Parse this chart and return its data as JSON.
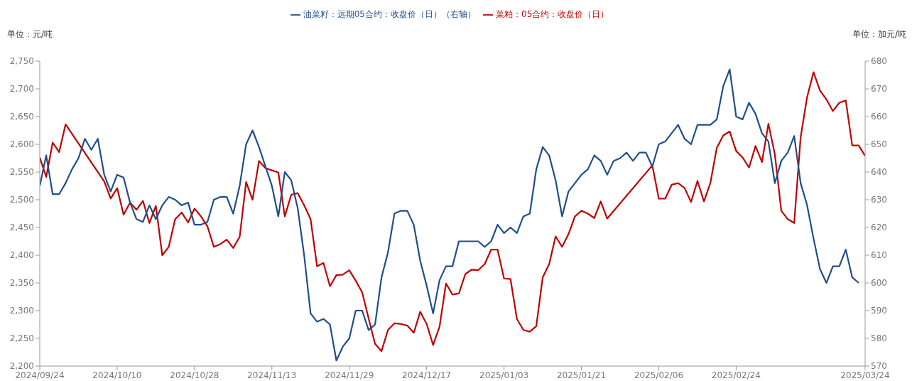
{
  "chart_data": {
    "type": "line",
    "ylabel": "单位：元/吨",
    "y2label": "单位：加元/吨",
    "categories": [
      "2024/09/24",
      null,
      null,
      null,
      null,
      null,
      null,
      null,
      null,
      null,
      null,
      null,
      "2024/10/10",
      null,
      null,
      null,
      null,
      null,
      null,
      null,
      null,
      null,
      null,
      null,
      "2024/10/28",
      null,
      null,
      null,
      null,
      null,
      null,
      null,
      null,
      null,
      null,
      null,
      "2024/11/13",
      null,
      null,
      null,
      null,
      null,
      null,
      null,
      null,
      null,
      null,
      null,
      "2024/11/29",
      null,
      null,
      null,
      null,
      null,
      null,
      null,
      null,
      null,
      null,
      null,
      "2024/12/17",
      null,
      null,
      null,
      null,
      null,
      null,
      null,
      null,
      null,
      null,
      null,
      "2025/01/03",
      null,
      null,
      null,
      null,
      null,
      null,
      null,
      null,
      null,
      null,
      null,
      "2025/01/21",
      null,
      null,
      null,
      null,
      null,
      null,
      null,
      null,
      null,
      null,
      null,
      "2025/02/06",
      null,
      null,
      null,
      null,
      null,
      null,
      null,
      null,
      null,
      null,
      null,
      "2025/02/24",
      null,
      null,
      null,
      null,
      null,
      null,
      null,
      null,
      null,
      null,
      null,
      null,
      null,
      null,
      null,
      null,
      null,
      null,
      null,
      "2025/03/24"
    ],
    "series": [
      {
        "name": "菜粕：05合约：收盘价（日）",
        "color": "#c00000",
        "values": [
          2576,
          2541,
          2603,
          2586,
          2636,
          null,
          null,
          null,
          null,
          null,
          2533,
          2502,
          2521,
          2473,
          2495,
          2482,
          2498,
          2458,
          2489,
          2400,
          2415,
          2465,
          2477,
          2459,
          2484,
          2470,
          2452,
          2415,
          2420,
          2428,
          2413,
          2433,
          2532,
          2500,
          2570,
          2557,
          2553,
          2549,
          2470,
          2509,
          2512,
          2490,
          2465,
          2380,
          2386,
          2344,
          2364,
          2365,
          2373,
          2354,
          2333,
          2286,
          2240,
          2227,
          2265,
          2277,
          2276,
          2273,
          2260,
          2298,
          2276,
          2238,
          2271,
          2349,
          2329,
          2331,
          2366,
          2374,
          2373,
          2384,
          2410,
          2410,
          2358,
          2357,
          2285,
          2265,
          2262,
          2272,
          2360,
          2384,
          2434,
          2415,
          2438,
          2470,
          2480,
          2475,
          2467,
          2497,
          2466,
          null,
          null,
          null,
          null,
          null,
          null,
          2562,
          2502,
          2502,
          2527,
          2530,
          2521,
          2496,
          2534,
          2497,
          2530,
          2594,
          2616,
          2623,
          2588,
          2576,
          2558,
          2597,
          2568,
          2637,
          2582,
          2480,
          2465,
          2458,
          2613,
          2685,
          2730,
          2697,
          2681,
          2660,
          2675,
          2679,
          2598,
          2598,
          2579
        ]
      },
      {
        "name": "油菜籽：远期05合约：收盘价（日）（右轴）",
        "color": "#1f4e8c",
        "axis": "y2",
        "values": [
          635,
          646,
          632,
          632,
          636,
          641,
          645,
          652,
          648,
          652,
          639,
          633,
          639,
          638,
          629,
          623,
          622,
          628,
          623,
          628,
          631,
          630,
          628,
          629,
          621,
          621,
          622,
          630,
          631,
          631,
          625,
          635,
          650,
          655,
          649,
          642,
          635,
          624,
          640,
          637,
          627,
          610,
          589,
          586,
          587,
          585,
          572,
          577,
          580,
          590,
          590,
          583,
          585,
          602,
          611,
          625,
          626,
          626,
          621,
          608,
          599,
          589,
          601,
          606,
          606,
          615,
          615,
          615,
          615,
          613,
          615,
          621,
          618,
          620,
          618,
          624,
          625,
          641,
          649,
          646,
          637,
          624,
          633,
          636,
          639,
          641,
          646,
          644,
          639,
          644,
          645,
          647,
          644,
          647,
          647,
          642,
          650,
          651,
          654,
          657,
          652,
          650,
          657,
          657,
          657,
          659,
          671,
          677,
          660,
          659,
          665,
          661,
          654,
          651,
          636,
          644,
          647,
          653,
          636,
          628,
          616,
          605,
          600,
          606,
          606,
          612,
          602,
          600,
          null
        ]
      }
    ],
    "ylim": [
      2200,
      2750
    ],
    "yticks": [
      {
        "value": 2200,
        "label": "2,200"
      },
      {
        "value": 2250,
        "label": "2,250"
      },
      {
        "value": 2300,
        "label": "2,300"
      },
      {
        "value": 2350,
        "label": "2,350"
      },
      {
        "value": 2400,
        "label": "2,400"
      },
      {
        "value": 2450,
        "label": "2,450"
      },
      {
        "value": 2500,
        "label": "2,500"
      },
      {
        "value": 2550,
        "label": "2,550"
      },
      {
        "value": 2600,
        "label": "2,600"
      },
      {
        "value": 2650,
        "label": "2,650"
      },
      {
        "value": 2700,
        "label": "2,700"
      },
      {
        "value": 2750,
        "label": "2,750"
      }
    ],
    "y2lim": [
      570,
      680
    ],
    "y2ticks": [
      570,
      580,
      590,
      600,
      610,
      620,
      630,
      640,
      650,
      660,
      670,
      680
    ],
    "grid": false,
    "legend": "top",
    "marker": "none",
    "line_style": "solid"
  }
}
